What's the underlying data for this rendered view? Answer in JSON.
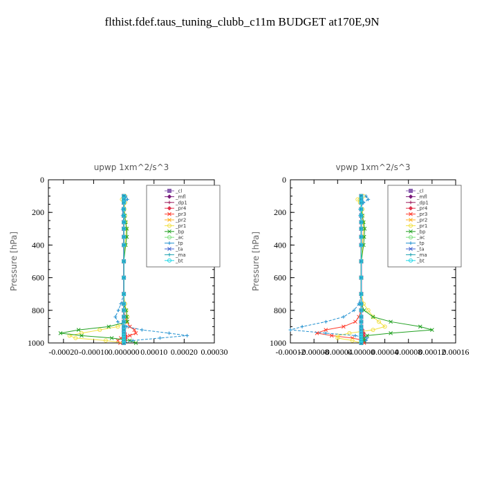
{
  "page_title": "flthist.fdef.taus_tuning_clubb_c11m  BUDGET at170E,9N",
  "chart_data": [
    {
      "type": "line",
      "title": "upwp   1xm^2/s^3",
      "ylabel": "Pressure [hPa]",
      "xlim": [
        -0.00025,
        0.0003
      ],
      "ylim": [
        1000,
        0
      ],
      "x_tick_labels": [
        "-0.00020",
        "-0.00010",
        "0.000000",
        "0.00010",
        "0.00020",
        "0.00030"
      ],
      "y_tick_labels": [
        "0",
        "200",
        "400",
        "600",
        "800",
        "1000"
      ],
      "legend_position": "top-right",
      "pressure_levels": [
        100,
        120,
        140,
        180,
        220,
        260,
        300,
        350,
        400,
        500,
        600,
        700,
        760,
        800,
        840,
        870,
        900,
        920,
        940,
        955,
        970,
        985,
        1000
      ],
      "series": [
        {
          "name": "_cl",
          "color": "#8a5fb0",
          "x": [
            0,
            0,
            0,
            0,
            0,
            0,
            0,
            0,
            0,
            0,
            0,
            0,
            0,
            0,
            0,
            0,
            0,
            0,
            0,
            0,
            0,
            0,
            0
          ]
        },
        {
          "name": "_mfl",
          "color": "#7a1a7a",
          "x": [
            0,
            0,
            0,
            0,
            0,
            0,
            0,
            0,
            0,
            0,
            0,
            0,
            0,
            0,
            0,
            0,
            0,
            0,
            0,
            0,
            0,
            0,
            0
          ]
        },
        {
          "name": "_dp1",
          "color": "#9b1a5a",
          "x": [
            0,
            0,
            0,
            0,
            0,
            0,
            0,
            0,
            0,
            0,
            0,
            0,
            0,
            0,
            0,
            0,
            0,
            0,
            0,
            0,
            0,
            0,
            0
          ]
        },
        {
          "name": "_pr4",
          "color": "#e0304a",
          "x": [
            0,
            0,
            0,
            0,
            0,
            0,
            0,
            0,
            0,
            0,
            0,
            0,
            0,
            0,
            0,
            0,
            0,
            0,
            3e-06,
            5e-06,
            6e-06,
            4e-06,
            0
          ]
        },
        {
          "name": "_pr3",
          "color": "#ff3a2a",
          "x": [
            0,
            0,
            0,
            0,
            0,
            0,
            0,
            0,
            0,
            0,
            0,
            0,
            0,
            0,
            4e-06,
            1e-05,
            2e-05,
            3.5e-05,
            4e-05,
            2e-05,
            -1e-05,
            -2e-05,
            -1.2e-05
          ]
        },
        {
          "name": "_pr2",
          "color": "#ffb020",
          "x": [
            0,
            0,
            0,
            0,
            0,
            0,
            0,
            0,
            0,
            0,
            0,
            0,
            0,
            0,
            0,
            0,
            0,
            0,
            0,
            0,
            0,
            0,
            0
          ]
        },
        {
          "name": "_pr1",
          "color": "#f0e040",
          "x": [
            4e-06,
            -6e-06,
            4e-06,
            2e-06,
            4e-06,
            6e-06,
            8e-06,
            6e-06,
            4e-06,
            0,
            0,
            0,
            4e-06,
            8e-06,
            1.2e-05,
            8e-06,
            -2e-05,
            -8e-05,
            -0.00014,
            -0.00018,
            -0.00016,
            -6e-05,
            0
          ]
        },
        {
          "name": "_bp",
          "color": "#20a020",
          "x": [
            0,
            0,
            0,
            0,
            3e-06,
            6e-06,
            1e-05,
            1e-05,
            6e-06,
            0,
            0,
            0,
            0,
            8e-06,
            1e-05,
            1.2e-05,
            -5e-05,
            -0.00015,
            -0.00021,
            -0.00014,
            -4e-05,
            2e-05,
            4e-05
          ]
        },
        {
          "name": "_ac",
          "color": "#7ee07e",
          "x": [
            0,
            0,
            0,
            0,
            0,
            0,
            0,
            0,
            0,
            0,
            0,
            0,
            0,
            0,
            0,
            0,
            0,
            0,
            0,
            0,
            0,
            0,
            0
          ]
        },
        {
          "name": "_tp",
          "color": "#2090d0",
          "x": [
            6e-06,
            1.2e-05,
            2e-06,
            -4e-06,
            -4e-06,
            0,
            0,
            0,
            0,
            0,
            0,
            0,
            -1e-05,
            -1.8e-05,
            -2.8e-05,
            -2e-05,
            1e-05,
            6e-05,
            0.00015,
            0.00021,
            0.00012,
            3e-05,
            0
          ]
        },
        {
          "name": "_ta",
          "color": "#4060d0",
          "x": [
            0,
            0,
            0,
            0,
            0,
            0,
            0,
            0,
            0,
            0,
            0,
            0,
            0,
            0,
            0,
            0,
            0,
            0,
            0,
            0,
            0,
            0,
            0
          ]
        },
        {
          "name": "_ma",
          "color": "#1aa0b0",
          "x": [
            0,
            0,
            0,
            0,
            0,
            0,
            0,
            0,
            0,
            0,
            0,
            0,
            0,
            0,
            0,
            0,
            0,
            0,
            0,
            0,
            0,
            0,
            0
          ]
        },
        {
          "name": "_bt",
          "color": "#20d8e8",
          "x": [
            0,
            0,
            0,
            0,
            0,
            0,
            0,
            0,
            0,
            0,
            0,
            0,
            0,
            0,
            0,
            0,
            0,
            0,
            0,
            0,
            0,
            0,
            0
          ]
        }
      ]
    },
    {
      "type": "line",
      "title": "vpwp   1xm^2/s^3",
      "ylabel": "Pressure [hPa]",
      "xlim": [
        -0.00012,
        0.00016
      ],
      "ylim": [
        1000,
        0
      ],
      "x_tick_labels": [
        "-0.00012",
        "-0.00008",
        "-0.00004",
        "0.00000",
        "0.00004",
        "0.00008",
        "0.00012",
        "0.00016"
      ],
      "y_tick_labels": [
        "0",
        "200",
        "400",
        "600",
        "800",
        "1000"
      ],
      "legend_position": "top-right",
      "pressure_levels": [
        100,
        120,
        140,
        180,
        220,
        260,
        300,
        350,
        400,
        500,
        600,
        700,
        760,
        800,
        840,
        870,
        900,
        920,
        940,
        955,
        970,
        985,
        1000
      ],
      "series": [
        {
          "name": "_cl",
          "color": "#8a5fb0",
          "x": [
            0,
            0,
            0,
            0,
            0,
            0,
            0,
            0,
            0,
            0,
            0,
            0,
            0,
            0,
            0,
            0,
            0,
            0,
            0,
            0,
            0,
            0,
            0
          ]
        },
        {
          "name": "_mfl",
          "color": "#7a1a7a",
          "x": [
            0,
            0,
            0,
            0,
            0,
            0,
            0,
            0,
            0,
            0,
            0,
            0,
            0,
            0,
            0,
            0,
            0,
            0,
            0,
            0,
            0,
            0,
            0
          ]
        },
        {
          "name": "_dp1",
          "color": "#9b1a5a",
          "x": [
            0,
            0,
            0,
            0,
            0,
            0,
            0,
            0,
            0,
            0,
            0,
            0,
            0,
            0,
            0,
            0,
            0,
            0,
            0,
            0,
            0,
            0,
            0
          ]
        },
        {
          "name": "_pr4",
          "color": "#e0304a",
          "x": [
            0,
            0,
            0,
            0,
            0,
            0,
            0,
            0,
            0,
            0,
            0,
            0,
            0,
            0,
            0,
            0,
            0,
            2e-06,
            4e-06,
            4e-06,
            2e-06,
            0,
            0
          ]
        },
        {
          "name": "_pr3",
          "color": "#ff3a2a",
          "x": [
            0,
            0,
            0,
            0,
            0,
            0,
            0,
            0,
            0,
            0,
            0,
            0,
            0,
            0,
            -4e-06,
            -1e-05,
            -3e-05,
            -6e-05,
            -7.5e-05,
            -5e-05,
            -1.5e-05,
            4e-06,
            5e-06
          ]
        },
        {
          "name": "_pr2",
          "color": "#ffb020",
          "x": [
            0,
            0,
            0,
            0,
            0,
            0,
            0,
            0,
            0,
            0,
            0,
            0,
            0,
            0,
            0,
            0,
            0,
            0,
            0,
            0,
            0,
            0,
            0
          ]
        },
        {
          "name": "_pr1",
          "color": "#f0e040",
          "x": [
            4e-06,
            -6e-06,
            -2e-06,
            2e-06,
            2e-06,
            3e-06,
            4e-06,
            3e-06,
            2e-06,
            0,
            0,
            0,
            4e-06,
            1.2e-05,
            2e-05,
            3e-05,
            4e-05,
            2e-05,
            -2e-05,
            -4e-05,
            -4e-05,
            -1.5e-05,
            0
          ]
        },
        {
          "name": "_bp",
          "color": "#20a020",
          "x": [
            0,
            0,
            0,
            0,
            2e-06,
            4e-06,
            6e-06,
            5e-06,
            4e-06,
            0,
            0,
            0,
            0,
            5e-06,
            2e-05,
            5e-05,
            0.0001,
            0.00012,
            5e-05,
            1e-05,
            5e-06,
            5e-06,
            0
          ]
        },
        {
          "name": "_ac",
          "color": "#7ee07e",
          "x": [
            0,
            0,
            0,
            0,
            0,
            0,
            0,
            0,
            0,
            0,
            0,
            0,
            0,
            0,
            0,
            0,
            0,
            0,
            0,
            0,
            0,
            0,
            0
          ]
        },
        {
          "name": "_tp",
          "color": "#2090d0",
          "x": [
            8e-06,
            1.2e-05,
            4e-06,
            -2e-06,
            -2e-06,
            0,
            0,
            0,
            0,
            0,
            0,
            0,
            -4e-06,
            -1.2e-05,
            -3e-05,
            -6e-05,
            -0.0001,
            -0.00012,
            -6e-05,
            -1e-05,
            1e-05,
            8e-06,
            0
          ]
        },
        {
          "name": "_ta",
          "color": "#4060d0",
          "x": [
            0,
            0,
            0,
            0,
            0,
            0,
            0,
            0,
            0,
            0,
            0,
            0,
            0,
            0,
            0,
            0,
            0,
            0,
            0,
            0,
            0,
            0,
            0
          ]
        },
        {
          "name": "_ma",
          "color": "#1aa0b0",
          "x": [
            0,
            0,
            0,
            0,
            0,
            0,
            0,
            0,
            0,
            0,
            0,
            0,
            0,
            0,
            0,
            0,
            0,
            0,
            0,
            0,
            0,
            0,
            0
          ]
        },
        {
          "name": "_bt",
          "color": "#20d8e8",
          "x": [
            0,
            0,
            0,
            0,
            0,
            0,
            0,
            0,
            0,
            0,
            0,
            0,
            0,
            0,
            0,
            0,
            0,
            0,
            0,
            0,
            0,
            0,
            0
          ]
        }
      ]
    }
  ]
}
